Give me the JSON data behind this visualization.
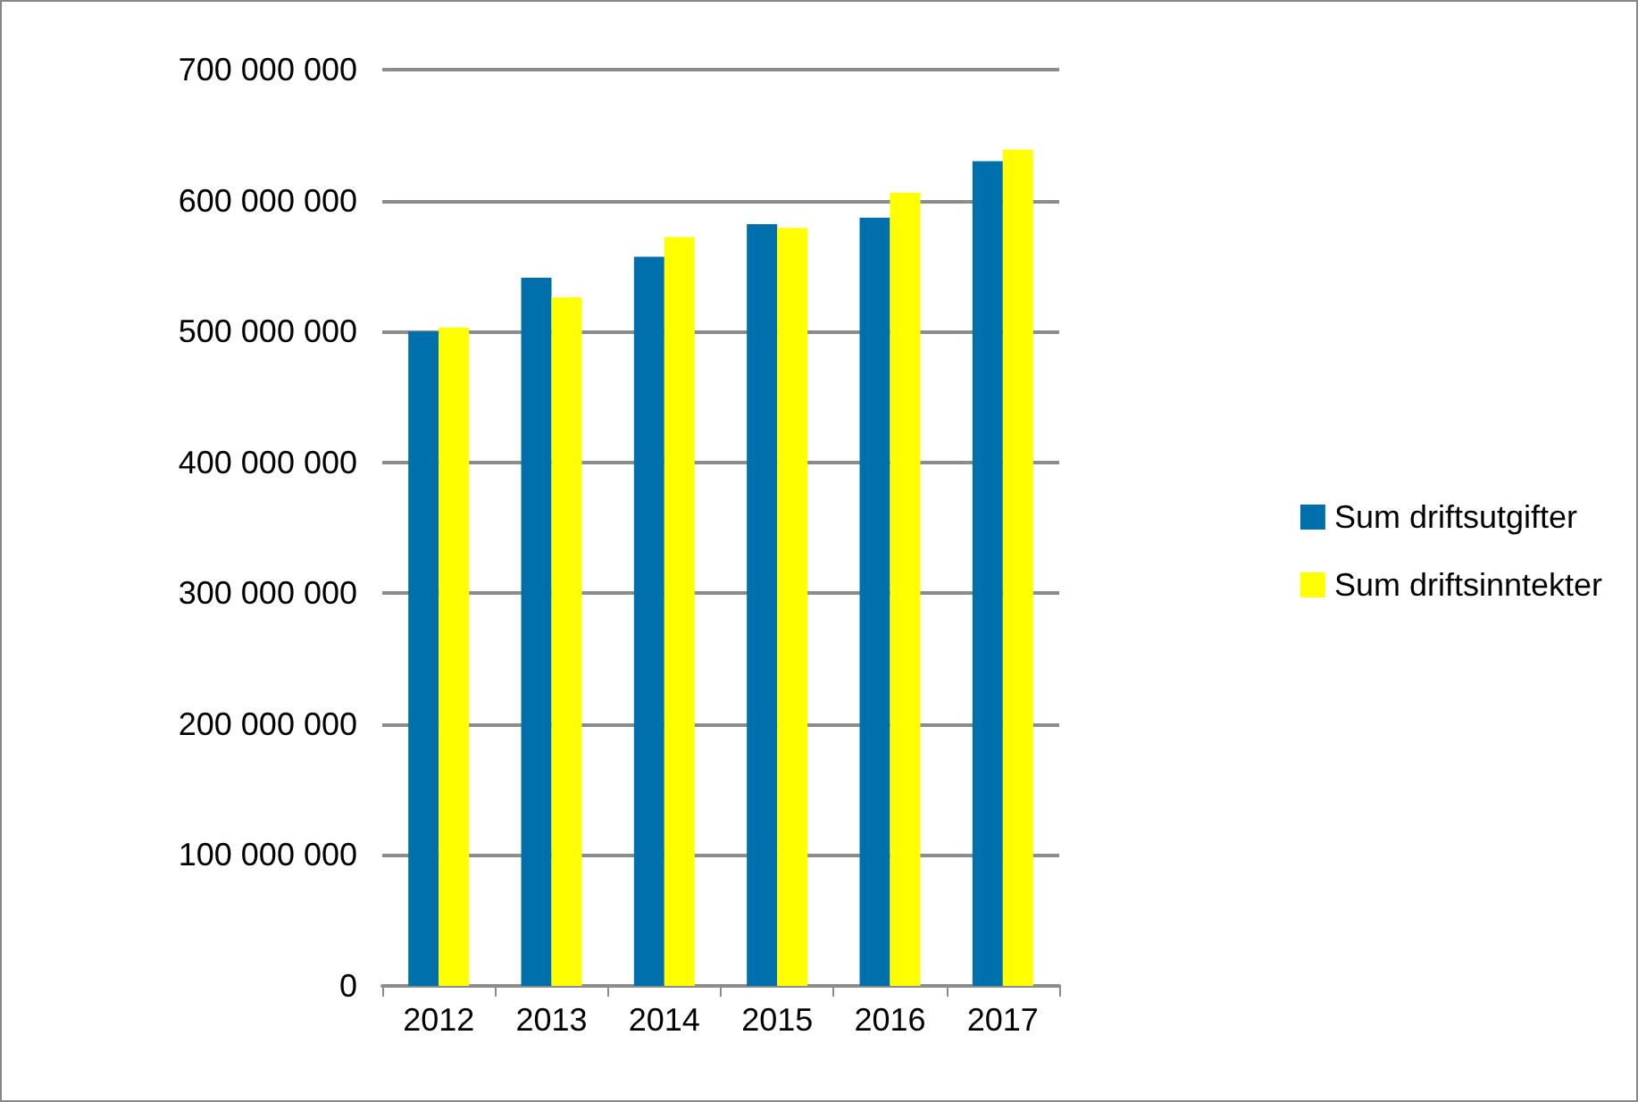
{
  "chart_data": {
    "type": "bar",
    "categories": [
      "2012",
      "2013",
      "2014",
      "2015",
      "2016",
      "2017"
    ],
    "series": [
      {
        "name": "Sum driftsutgifter",
        "color": "#0070ac",
        "values": [
          500000000,
          541000000,
          557000000,
          582000000,
          587000000,
          630000000
        ]
      },
      {
        "name": "Sum driftsinntekter",
        "color": "#ffff00",
        "values": [
          503000000,
          526000000,
          572000000,
          579000000,
          606000000,
          639000000
        ]
      }
    ],
    "ylim": [
      0,
      700000000
    ],
    "yticks": [
      {
        "value": 0,
        "label": "0"
      },
      {
        "value": 100000000,
        "label": "100 000 000"
      },
      {
        "value": 200000000,
        "label": "200 000 000"
      },
      {
        "value": 300000000,
        "label": "300 000 000"
      },
      {
        "value": 400000000,
        "label": "400 000 000"
      },
      {
        "value": 500000000,
        "label": "500 000 000"
      },
      {
        "value": 600000000,
        "label": "600 000 000"
      },
      {
        "value": 700000000,
        "label": "700 000 000"
      }
    ],
    "grid": "y",
    "legend": "right"
  }
}
